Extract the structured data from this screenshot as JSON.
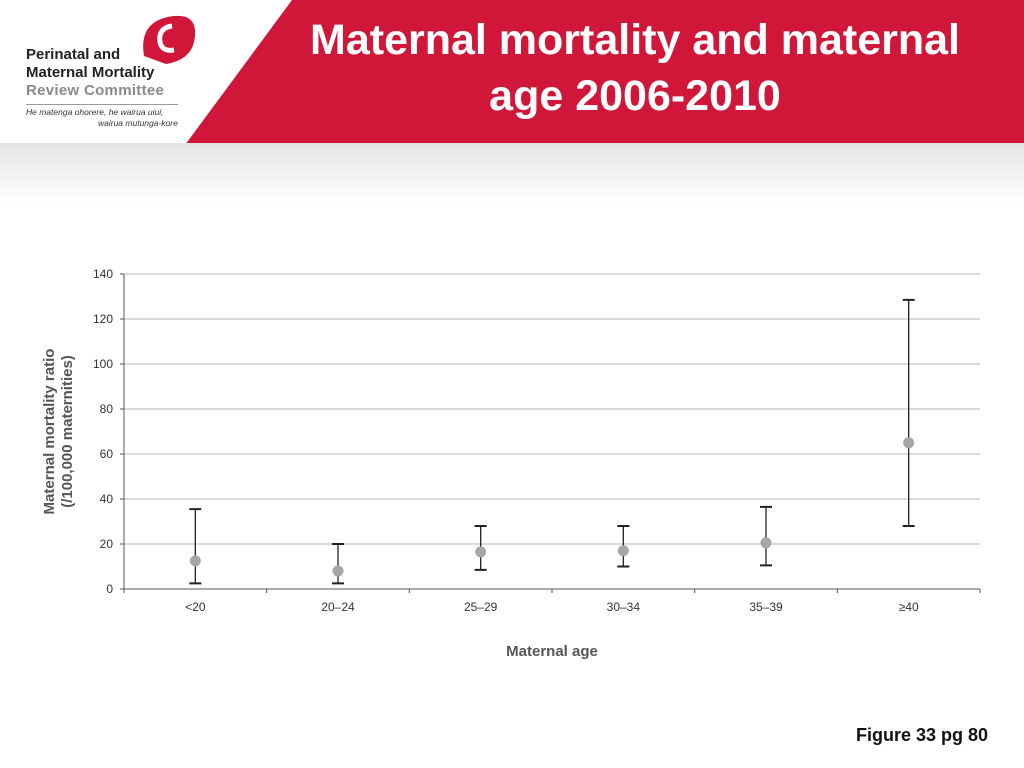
{
  "header": {
    "title": "Maternal mortality and maternal age 2006-2010",
    "brand_color": "#d0173a"
  },
  "logo": {
    "line1": "Perinatal and",
    "line2": "Maternal Mortality",
    "line3": "Review Committee",
    "tagline1": "He matenga ohorere, he wairua uiui,",
    "tagline2": "wairua mutunga-kore"
  },
  "chart_data": {
    "type": "scatter",
    "xlabel": "Maternal age",
    "ylabel": "Maternal mortality ratio (/100,000 maternities)",
    "ylabel_lines": [
      "Maternal mortality ratio",
      "(/100,000 maternities)"
    ],
    "ylim": [
      0,
      140
    ],
    "yticks": [
      0,
      20,
      40,
      60,
      80,
      100,
      120,
      140
    ],
    "grid": true,
    "categories": [
      "<20",
      "20–24",
      "25–29",
      "30–34",
      "35–39",
      "≥40"
    ],
    "series": [
      {
        "values": [
          12.5,
          8,
          16.5,
          17,
          20.5,
          65
        ],
        "lower": [
          2.5,
          2.5,
          8.5,
          10,
          10.5,
          28
        ],
        "upper": [
          35.5,
          20,
          28,
          28,
          36.5,
          128.5
        ],
        "color": "#a6a6a6",
        "errorbar_color": "#222222"
      }
    ]
  },
  "caption": "Figure 33 pg 80"
}
